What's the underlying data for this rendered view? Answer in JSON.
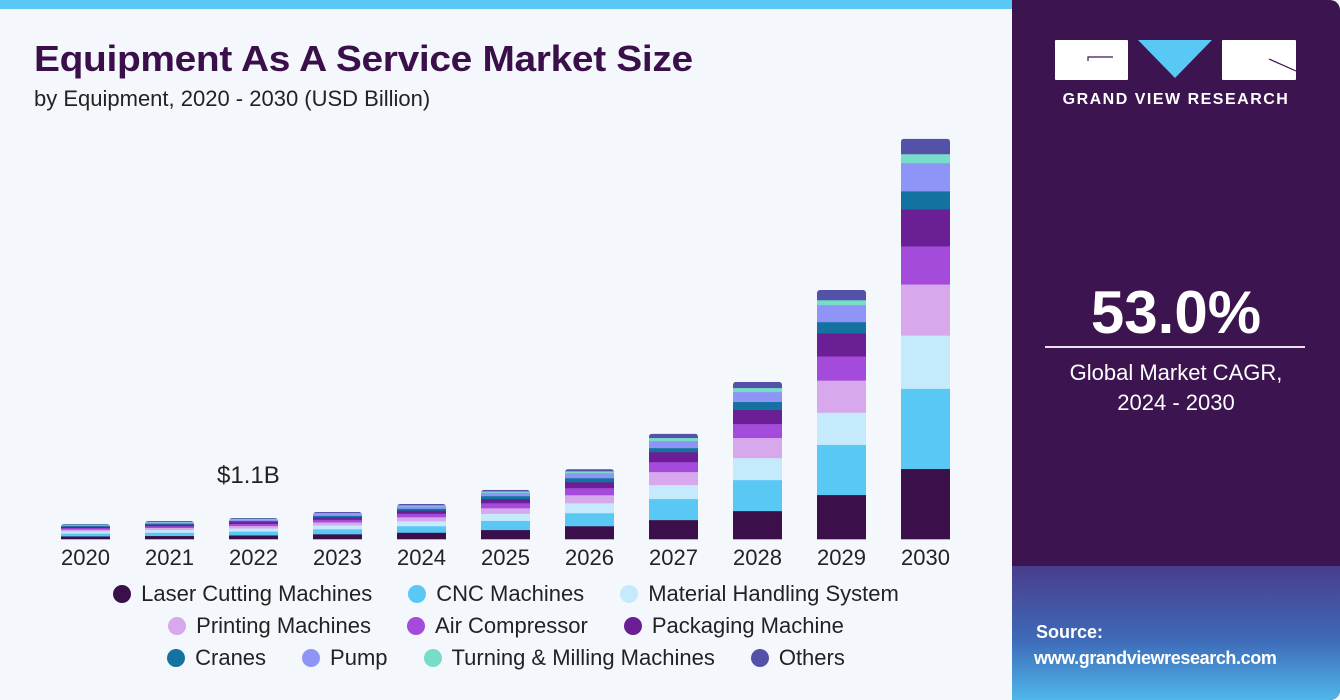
{
  "header": {
    "title": "Equipment As A Service Market Size",
    "subtitle": "by Equipment, 2020 - 2030 (USD Billion)"
  },
  "annotation": "$1.1B",
  "brand": {
    "name": "GRAND VIEW RESEARCH",
    "logo_icon": "gvr-logo-icon",
    "colors": {
      "panel": "#3b1450",
      "accent": "#5ac8f5"
    }
  },
  "stat": {
    "value": "53.0%",
    "label_line1": "Global Market CAGR,",
    "label_line2": "2024 - 2030"
  },
  "source": {
    "label": "Source:",
    "url": "www.grandviewresearch.com"
  },
  "chart_data": {
    "type": "bar",
    "stacked": true,
    "title": "Equipment As A Service Market Size",
    "subtitle": "by Equipment, 2020 - 2030 (USD Billion)",
    "xlabel": "",
    "ylabel": "USD Billion",
    "ylim": [
      0,
      21
    ],
    "grid": false,
    "legend_position": "bottom",
    "categories": [
      "2020",
      "2021",
      "2022",
      "2023",
      "2024",
      "2025",
      "2026",
      "2027",
      "2028",
      "2029",
      "2030"
    ],
    "annotations": [
      {
        "category": "2022",
        "text": "$1.1B"
      }
    ],
    "series": [
      {
        "name": "Laser Cutting Machines",
        "color": "#3b0f4a",
        "values": [
          0.15,
          0.17,
          0.2,
          0.26,
          0.34,
          0.48,
          0.68,
          1.0,
          1.47,
          2.31,
          3.67
        ]
      },
      {
        "name": "CNC Machines",
        "color": "#5ac8f5",
        "values": [
          0.15,
          0.17,
          0.2,
          0.26,
          0.34,
          0.48,
          0.68,
          1.1,
          1.62,
          2.62,
          4.19
        ]
      },
      {
        "name": "Material Handling System",
        "color": "#c5eafb",
        "values": [
          0.11,
          0.14,
          0.16,
          0.2,
          0.26,
          0.37,
          0.52,
          0.73,
          1.15,
          1.68,
          2.78
        ]
      },
      {
        "name": "Printing Machines",
        "color": "#d8a8ec",
        "values": [
          0.09,
          0.11,
          0.13,
          0.16,
          0.21,
          0.29,
          0.42,
          0.68,
          1.05,
          1.68,
          2.67
        ]
      },
      {
        "name": "Air Compressor",
        "color": "#a44bdc",
        "values": [
          0.08,
          0.09,
          0.11,
          0.14,
          0.18,
          0.26,
          0.37,
          0.52,
          0.73,
          1.26,
          1.99
        ]
      },
      {
        "name": "Packaging Machine",
        "color": "#6b1f94",
        "values": [
          0.07,
          0.08,
          0.1,
          0.12,
          0.16,
          0.22,
          0.31,
          0.52,
          0.73,
          1.21,
          1.94
        ]
      },
      {
        "name": "Cranes",
        "color": "#13729f",
        "values": [
          0.04,
          0.05,
          0.06,
          0.08,
          0.1,
          0.15,
          0.21,
          0.21,
          0.42,
          0.58,
          0.94
        ]
      },
      {
        "name": "Pump",
        "color": "#8f95f7",
        "values": [
          0.06,
          0.07,
          0.08,
          0.1,
          0.13,
          0.18,
          0.26,
          0.37,
          0.52,
          0.89,
          1.47
        ]
      },
      {
        "name": "Turning & Milling Machines",
        "color": "#77ddc9",
        "values": [
          0.02,
          0.03,
          0.03,
          0.04,
          0.05,
          0.07,
          0.1,
          0.16,
          0.21,
          0.26,
          0.47
        ]
      },
      {
        "name": "Others",
        "color": "#5451a8",
        "values": [
          0.02,
          0.03,
          0.03,
          0.05,
          0.06,
          0.07,
          0.1,
          0.21,
          0.31,
          0.52,
          0.79
        ]
      }
    ]
  },
  "legend": {
    "rows": [
      [
        0,
        1,
        2
      ],
      [
        3,
        4,
        5
      ],
      [
        6,
        7,
        8,
        9
      ]
    ]
  }
}
